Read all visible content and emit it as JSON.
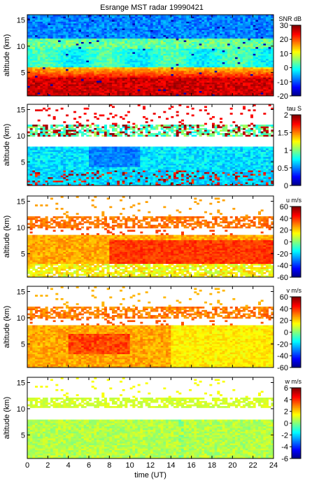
{
  "title": "Esrange MST radar 19990421",
  "chart_data": [
    {
      "type": "heatmap",
      "ylabel": "altitude (km)",
      "xlabel": "",
      "x_range": [
        0,
        24
      ],
      "y_range": [
        0.5,
        16
      ],
      "y_ticks": [
        5,
        10,
        15
      ],
      "colorbar": {
        "label": "SNR dB",
        "range": [
          -20,
          30
        ],
        "ticks": [
          30,
          20,
          10,
          0,
          -10,
          -20
        ]
      },
      "pattern": "snr"
    },
    {
      "type": "heatmap",
      "ylabel": "altitude (km)",
      "xlabel": "",
      "x_range": [
        0,
        24
      ],
      "y_range": [
        0.5,
        16
      ],
      "y_ticks": [
        5,
        10,
        15
      ],
      "colorbar": {
        "label": "tau S",
        "range": [
          0,
          2
        ],
        "ticks": [
          2,
          1.5,
          1,
          0.5,
          0
        ]
      },
      "pattern": "tau"
    },
    {
      "type": "heatmap",
      "ylabel": "altitude (km)",
      "xlabel": "",
      "x_range": [
        0,
        24
      ],
      "y_range": [
        0.5,
        16
      ],
      "y_ticks": [
        5,
        10,
        15
      ],
      "colorbar": {
        "label": "u m/s",
        "range": [
          -60,
          60
        ],
        "ticks": [
          60,
          40,
          20,
          0,
          -20,
          -40,
          -60
        ]
      },
      "pattern": "u"
    },
    {
      "type": "heatmap",
      "ylabel": "altitude (km)",
      "xlabel": "",
      "x_range": [
        0,
        24
      ],
      "y_range": [
        0.5,
        16
      ],
      "y_ticks": [
        5,
        10,
        15
      ],
      "colorbar": {
        "label": "v m/s",
        "range": [
          -60,
          60
        ],
        "ticks": [
          60,
          40,
          20,
          0,
          -20,
          -40,
          -60
        ]
      },
      "pattern": "v"
    },
    {
      "type": "heatmap",
      "ylabel": "altitude (km)",
      "xlabel": "time (UT)",
      "x_range": [
        0,
        24
      ],
      "x_ticks": [
        0,
        2,
        4,
        6,
        8,
        10,
        12,
        14,
        16,
        18,
        20,
        22,
        24
      ],
      "y_range": [
        0.5,
        16
      ],
      "y_ticks": [
        5,
        10,
        15
      ],
      "colorbar": {
        "label": "w m/s",
        "range": [
          -6,
          6
        ],
        "ticks": [
          6,
          4,
          2,
          0,
          -2,
          -4,
          -6
        ]
      },
      "pattern": "w"
    }
  ]
}
